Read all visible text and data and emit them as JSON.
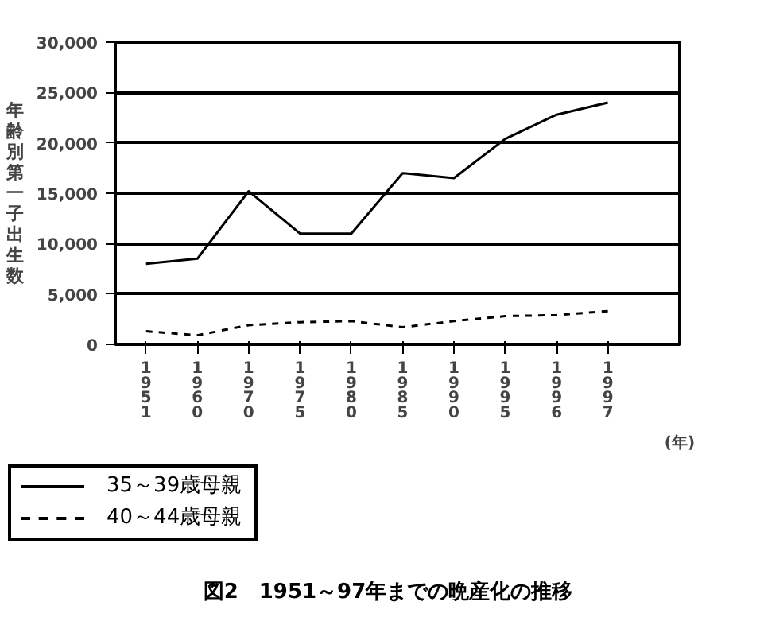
{
  "chart_data": {
    "type": "line",
    "title": "図2　1951～97年までの晩産化の推移",
    "xlabel": "(年)",
    "ylabel": "年齢別第一子出生数",
    "categories": [
      "1951",
      "1960",
      "1970",
      "1975",
      "1980",
      "1985",
      "1990",
      "1995",
      "1996",
      "1997"
    ],
    "series": [
      {
        "name": "35～39歳母親",
        "color": "#000000",
        "line_style": "solid",
        "values": [
          8000,
          8500,
          15200,
          11000,
          11000,
          17000,
          16500,
          20400,
          22800,
          24000
        ]
      },
      {
        "name": "40～44歳母親",
        "color": "#000000",
        "line_style": "dashed",
        "values": [
          1300,
          900,
          1900,
          2200,
          2300,
          1700,
          2300,
          2800,
          2900,
          3300
        ]
      }
    ],
    "ylim": [
      0,
      30000
    ],
    "yticks": [
      {
        "value": 0,
        "label": "0"
      },
      {
        "value": 5000,
        "label": "5,000"
      },
      {
        "value": 10000,
        "label": "10,000"
      },
      {
        "value": 15000,
        "label": "15,000"
      },
      {
        "value": 20000,
        "label": "20,000"
      },
      {
        "value": 25000,
        "label": "25,000"
      },
      {
        "value": 30000,
        "label": "30,000"
      }
    ],
    "grid": "y",
    "legend": "bottom left",
    "marker": "none"
  }
}
